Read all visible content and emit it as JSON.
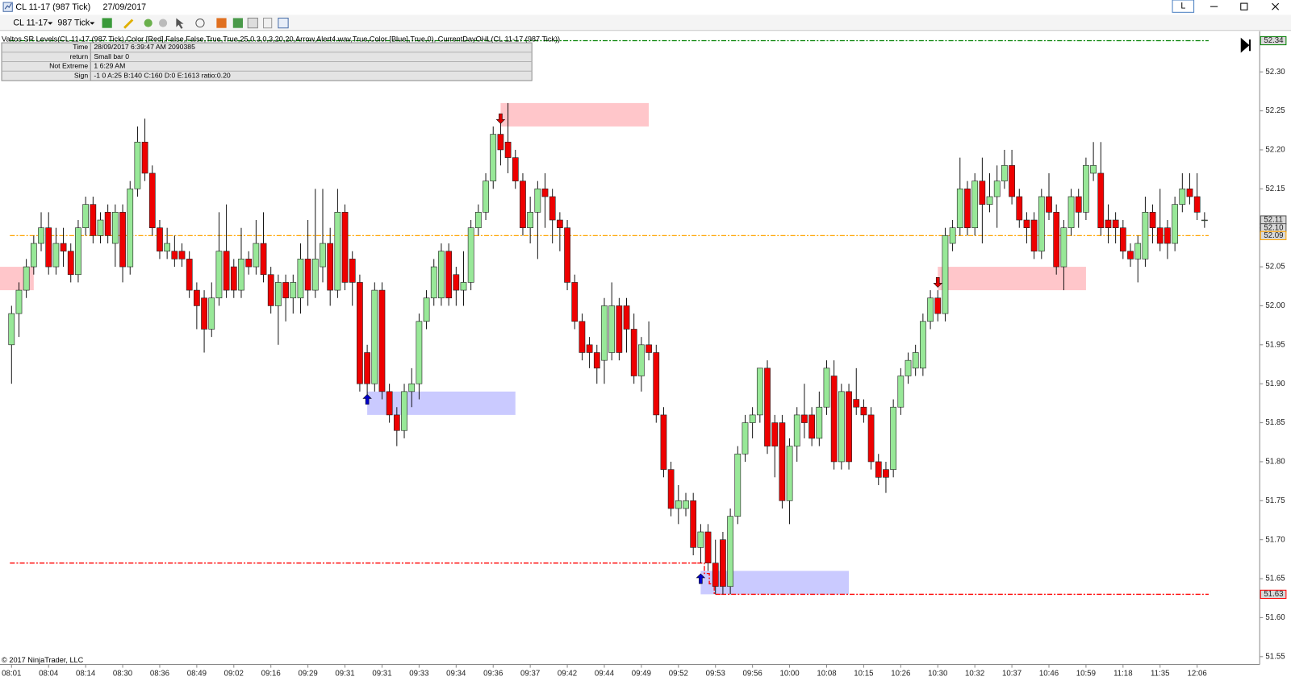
{
  "window": {
    "title": "CL 11-17 (987 Tick)",
    "date": "27/09/2017",
    "instrument": "CL 11-17",
    "period": "987 Tick",
    "button": "L"
  },
  "indicator_label": "Valtos SR Levels(CL 11-17 (987 Tick),Color [Red],False,False,True,True,25,0.3,0,3,20,20,Arrow,Alert4.wav,True,Color [Blue],True,0), CurrentDayOHL(CL 11-17 (987 Tick))",
  "info_table": {
    "rows": [
      [
        "Time",
        "28/09/2017 6:39:47 AM 2090385"
      ],
      [
        "return",
        "Small bar 0"
      ],
      [
        "Not Extreme",
        "1 6:29 AM"
      ],
      [
        "Sign",
        "-1 0 A:25 B:140 C:160 D:0 E:1613 ratio:0.20"
      ]
    ]
  },
  "copyright": "© 2017 NinjaTrader, LLC",
  "chart_data": {
    "type": "candlestick",
    "categories": [
      "08:01",
      null,
      null,
      null,
      null,
      "08:04",
      null,
      null,
      null,
      null,
      "08:14",
      null,
      null,
      null,
      null,
      "08:30",
      null,
      null,
      null,
      null,
      "08:36",
      null,
      null,
      null,
      null,
      "08:49",
      null,
      null,
      null,
      null,
      "09:02",
      null,
      null,
      null,
      null,
      "09:16",
      null,
      null,
      null,
      null,
      "09:29",
      null,
      null,
      null,
      null,
      "09:31",
      null,
      null,
      null,
      null,
      "09:31",
      null,
      null,
      null,
      null,
      "09:33",
      null,
      null,
      null,
      null,
      "09:34",
      null,
      null,
      null,
      null,
      "09:36",
      null,
      null,
      null,
      null,
      "09:37",
      null,
      null,
      null,
      null,
      "09:42",
      null,
      null,
      null,
      null,
      "09:44",
      null,
      null,
      null,
      null,
      "09:49",
      null,
      null,
      null,
      null,
      "09:52",
      null,
      null,
      null,
      null,
      "09:53",
      null,
      null,
      null,
      null,
      "09:56",
      null,
      null,
      null,
      null,
      "10:00",
      null,
      null,
      null,
      null,
      "10:08",
      null,
      null,
      null,
      null,
      "10:15",
      null,
      null,
      null,
      null,
      "10:26",
      null,
      null,
      null,
      null,
      "10:30",
      null,
      null,
      null,
      null,
      "10:32",
      null,
      null,
      null,
      null,
      "10:37",
      null,
      null,
      null,
      null,
      "10:46",
      null,
      null,
      null,
      null,
      "10:59",
      null,
      null,
      null,
      null,
      "11:18",
      null,
      null,
      null,
      null,
      "11:35",
      null,
      null,
      null,
      null,
      "12:06",
      null
    ],
    "open": [
      51.95,
      51.99,
      52.02,
      52.05,
      52.08,
      52.1,
      52.05,
      52.08,
      52.07,
      52.04,
      52.1,
      52.13,
      52.09,
      52.12,
      52.08,
      52.12,
      52.05,
      52.15,
      52.21,
      52.17,
      52.1,
      52.07,
      52.07,
      52.07,
      52.06,
      52.02,
      52.01,
      51.97,
      52.01,
      52.07,
      52.05,
      52.02,
      52.06,
      52.05,
      52.08,
      52.04,
      52.0,
      52.03,
      52.01,
      52.01,
      52.06,
      52.02,
      52.05,
      52.08,
      52.02,
      52.12,
      52.06,
      52.03,
      51.94,
      51.9,
      52.02,
      51.89,
      51.86,
      51.84,
      51.89,
      51.9,
      51.98,
      52.01,
      52.01,
      52.07,
      52.04,
      52.02,
      52.03,
      52.1,
      52.12,
      52.16,
      52.22,
      52.21,
      52.19,
      52.16,
      52.1,
      52.12,
      52.15,
      52.14,
      52.11,
      52.1,
      52.03,
      51.98,
      51.95,
      51.94,
      51.93,
      51.94,
      52.0,
      52.0,
      51.97,
      51.91,
      51.95,
      51.94,
      51.86,
      51.79,
      51.74,
      51.74,
      51.75,
      51.69,
      51.71,
      51.67,
      51.7,
      51.64,
      51.73,
      51.81,
      51.85,
      51.86,
      51.92,
      51.85,
      51.85,
      51.75,
      51.82,
      51.86,
      51.86,
      51.83,
      51.87,
      51.91,
      51.8,
      51.89,
      51.88,
      51.87,
      51.86,
      51.8,
      51.79,
      51.79,
      51.87,
      51.91,
      51.92,
      51.92,
      51.98,
      52.01,
      51.99,
      52.08,
      52.1,
      52.15,
      52.1,
      52.16,
      52.13,
      52.14,
      52.16,
      52.18,
      52.14,
      52.11,
      52.11,
      52.07,
      52.14,
      52.12,
      52.05,
      52.1,
      52.14,
      52.12,
      52.17,
      52.17,
      52.11,
      52.11,
      52.1,
      52.07,
      52.06,
      52.06,
      52.12,
      52.1,
      52.1,
      52.08,
      52.13,
      52.15,
      52.14,
      52.11
    ],
    "high": [
      52.0,
      52.03,
      52.06,
      52.09,
      52.12,
      52.12,
      52.1,
      52.1,
      52.08,
      52.11,
      52.14,
      52.14,
      52.12,
      52.13,
      52.13,
      52.13,
      52.16,
      52.23,
      52.24,
      52.18,
      52.11,
      52.1,
      52.09,
      52.08,
      52.07,
      52.03,
      52.02,
      52.03,
      52.12,
      52.13,
      52.06,
      52.1,
      52.07,
      52.11,
      52.12,
      52.05,
      52.04,
      52.04,
      52.04,
      52.08,
      52.11,
      52.15,
      52.15,
      52.1,
      52.15,
      52.13,
      52.07,
      52.04,
      51.95,
      52.03,
      52.03,
      51.9,
      51.87,
      51.9,
      51.92,
      51.99,
      52.02,
      52.06,
      52.08,
      52.08,
      52.05,
      52.07,
      52.11,
      52.13,
      52.17,
      52.23,
      52.24,
      52.26,
      52.2,
      52.17,
      52.14,
      52.16,
      52.17,
      52.15,
      52.12,
      52.11,
      52.04,
      51.99,
      51.96,
      51.95,
      52.01,
      52.03,
      52.01,
      52.01,
      51.99,
      51.96,
      51.98,
      51.95,
      51.87,
      51.8,
      51.77,
      51.76,
      51.76,
      51.72,
      51.72,
      51.7,
      51.71,
      51.74,
      51.82,
      51.86,
      51.87,
      51.92,
      51.93,
      51.86,
      51.86,
      51.83,
      51.87,
      51.9,
      51.87,
      51.89,
      51.93,
      51.93,
      51.9,
      51.9,
      51.92,
      51.88,
      51.87,
      51.81,
      51.8,
      51.88,
      51.92,
      51.94,
      51.95,
      51.99,
      52.02,
      52.02,
      52.1,
      52.11,
      52.19,
      52.16,
      52.17,
      52.19,
      52.17,
      52.18,
      52.2,
      52.2,
      52.15,
      52.12,
      52.12,
      52.15,
      52.17,
      52.13,
      52.11,
      52.15,
      52.15,
      52.19,
      52.21,
      52.21,
      52.13,
      52.12,
      52.11,
      52.08,
      52.09,
      52.14,
      52.13,
      52.15,
      52.11,
      52.14,
      52.17,
      52.17,
      52.17,
      52.12
    ],
    "low": [
      51.9,
      51.96,
      52.01,
      52.04,
      52.07,
      52.04,
      52.04,
      52.05,
      52.03,
      52.03,
      52.09,
      52.08,
      52.08,
      52.08,
      52.05,
      52.03,
      52.04,
      52.14,
      52.16,
      52.09,
      52.06,
      52.06,
      52.05,
      52.05,
      52.01,
      51.97,
      51.94,
      51.96,
      52.0,
      52.01,
      52.01,
      52.01,
      52.04,
      52.04,
      52.03,
      51.99,
      51.95,
      51.98,
      51.99,
      51.99,
      52.0,
      52.01,
      52.03,
      52.0,
      52.01,
      52.02,
      52.0,
      51.89,
      51.88,
      51.89,
      51.88,
      51.85,
      51.82,
      51.83,
      51.87,
      51.88,
      51.97,
      52.0,
      52.0,
      52.0,
      52.0,
      52.0,
      52.02,
      52.09,
      52.11,
      52.15,
      52.18,
      52.17,
      52.15,
      52.09,
      52.08,
      52.06,
      52.1,
      52.08,
      52.07,
      52.02,
      51.97,
      51.93,
      51.92,
      51.9,
      51.9,
      51.93,
      51.93,
      51.94,
      51.9,
      51.89,
      51.93,
      51.85,
      51.78,
      51.73,
      51.72,
      51.73,
      51.68,
      51.67,
      51.66,
      51.63,
      51.63,
      51.63,
      51.72,
      51.8,
      51.83,
      51.85,
      51.81,
      51.78,
      51.74,
      51.72,
      51.8,
      51.83,
      51.82,
      51.82,
      51.86,
      51.79,
      51.79,
      51.79,
      51.86,
      51.85,
      51.79,
      51.77,
      51.76,
      51.78,
      51.86,
      51.9,
      51.91,
      51.91,
      51.97,
      51.98,
      51.98,
      52.07,
      52.09,
      52.09,
      52.09,
      52.08,
      52.12,
      52.1,
      52.15,
      52.13,
      52.1,
      52.08,
      52.06,
      52.06,
      52.11,
      52.04,
      52.02,
      52.09,
      52.1,
      52.11,
      52.16,
      52.09,
      52.08,
      52.08,
      52.06,
      52.05,
      52.03,
      52.05,
      52.08,
      52.07,
      52.06,
      52.07,
      52.12,
      52.13,
      52.11,
      52.1
    ],
    "close": [
      51.99,
      52.02,
      52.05,
      52.08,
      52.1,
      52.05,
      52.08,
      52.07,
      52.04,
      52.1,
      52.13,
      52.09,
      52.11,
      52.09,
      52.12,
      52.05,
      52.15,
      52.21,
      52.17,
      52.1,
      52.07,
      52.08,
      52.06,
      52.06,
      52.02,
      52.0,
      51.97,
      52.01,
      52.07,
      52.02,
      52.02,
      52.06,
      52.05,
      52.08,
      52.04,
      52.0,
      52.03,
      52.01,
      52.03,
      52.06,
      52.02,
      52.06,
      52.08,
      52.02,
      52.12,
      52.03,
      52.03,
      51.9,
      51.9,
      52.02,
      51.89,
      51.86,
      51.84,
      51.89,
      51.9,
      51.98,
      52.01,
      52.05,
      52.07,
      52.01,
      52.02,
      52.03,
      52.1,
      52.12,
      52.16,
      52.22,
      52.2,
      52.19,
      52.16,
      52.1,
      52.12,
      52.15,
      52.14,
      52.11,
      52.1,
      52.03,
      51.98,
      51.94,
      51.94,
      51.92,
      52.0,
      52.0,
      51.94,
      51.97,
      51.91,
      51.95,
      51.94,
      51.86,
      51.79,
      51.74,
      51.75,
      51.75,
      51.69,
      51.71,
      51.67,
      51.64,
      51.64,
      51.73,
      51.81,
      51.85,
      51.86,
      51.92,
      51.82,
      51.82,
      51.75,
      51.82,
      51.86,
      51.85,
      51.83,
      51.87,
      51.92,
      51.8,
      51.89,
      51.8,
      51.87,
      51.86,
      51.8,
      51.78,
      51.78,
      51.87,
      51.91,
      51.93,
      51.94,
      51.98,
      52.01,
      51.99,
      52.09,
      52.1,
      52.15,
      52.1,
      52.16,
      52.13,
      52.14,
      52.16,
      52.18,
      52.14,
      52.11,
      52.1,
      52.07,
      52.14,
      52.12,
      52.05,
      52.1,
      52.14,
      52.12,
      52.18,
      52.18,
      52.1,
      52.1,
      52.1,
      52.07,
      52.06,
      52.08,
      52.12,
      52.1,
      52.08,
      52.08,
      52.13,
      52.15,
      52.14,
      52.12,
      52.11
    ],
    "up_color": "#98e898",
    "down_color": "#ee0000",
    "ylim": [
      51.54,
      52.35
    ],
    "yticks": [
      {
        "value": 52.3,
        "label": "52.30"
      },
      52.25,
      {
        "value": 52.2,
        "label": "52.20"
      },
      52.15,
      {
        "value": 52.1,
        "label": "52.10"
      },
      52.05,
      {
        "value": 52,
        "label": "52.00"
      },
      51.95,
      {
        "value": 51.9,
        "label": "51.90"
      },
      51.85,
      {
        "value": 51.8,
        "label": "51.80"
      },
      51.75,
      {
        "value": 51.7,
        "label": "51.70"
      },
      51.65,
      {
        "value": 51.6,
        "label": "51.60"
      },
      51.55
    ],
    "grid": false,
    "zones": [
      {
        "from": 0,
        "to": 3,
        "low": 52.02,
        "high": 52.05,
        "color": "#ffb3b8"
      },
      {
        "from": 66,
        "to": 86,
        "low": 52.23,
        "high": 52.26,
        "color": "#ffb3b8"
      },
      {
        "from": 48,
        "to": 68,
        "low": 51.86,
        "high": 51.89,
        "color": "#b8b8ff"
      },
      {
        "from": 125,
        "to": 145,
        "low": 52.02,
        "high": 52.05,
        "color": "#ffb3b8"
      },
      {
        "from": 93,
        "to": 113,
        "low": 51.63,
        "high": 51.66,
        "color": "#b8b8ff"
      }
    ],
    "arrows": [
      {
        "index": 48,
        "value": 51.88,
        "direction": "up",
        "color": "#0000cc"
      },
      {
        "index": 66,
        "value": 52.24,
        "direction": "down",
        "color": "#dd0000"
      },
      {
        "index": 93,
        "value": 51.65,
        "direction": "up",
        "color": "#0000cc"
      },
      {
        "index": 125,
        "value": 52.03,
        "direction": "down",
        "color": "#dd0000"
      }
    ],
    "levels": [
      {
        "from": 0,
        "to": 161,
        "value": 52.34,
        "color": "#008000"
      },
      {
        "from": 0,
        "to": 161,
        "value": 52.09,
        "color": "#ffa500"
      },
      {
        "from": 0,
        "to": 92,
        "value": 51.67,
        "color": "#ff0000"
      },
      {
        "from": 96,
        "to": 161,
        "value": 51.63,
        "color": "#ff0000"
      }
    ],
    "price_markers": [
      {
        "value": 52.34,
        "color": "#008000"
      },
      {
        "value": 52.11,
        "color": "#555555"
      },
      {
        "value": 52.1,
        "label": "52.10",
        "color": "#555555"
      },
      {
        "value": 52.09,
        "color": "#ffa500"
      },
      {
        "value": 51.63,
        "color": "#ff0000"
      }
    ]
  }
}
